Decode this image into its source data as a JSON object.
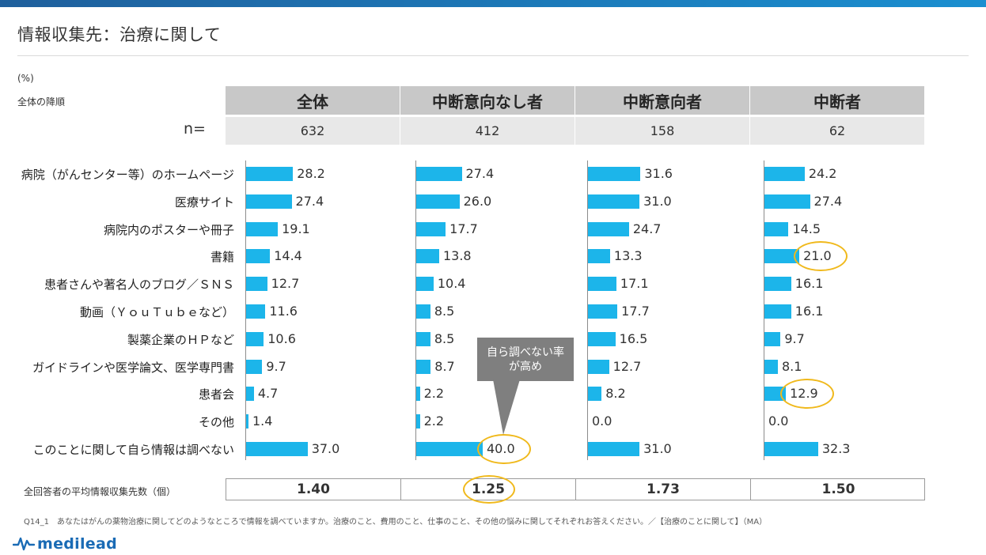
{
  "title": "情報収集先：治療に関して",
  "unit_label": "(%)",
  "sort_note": "全体の降順",
  "n_label": "n=",
  "colors": {
    "bar": "#1cb5ea",
    "highlight": "#f0b91c",
    "header": "#c8c8c8",
    "n_row": "#e8e8e8",
    "callout": "#7f7f7f"
  },
  "chart_data": {
    "type": "bar",
    "orientation": "horizontal",
    "panels": [
      {
        "name": "全体",
        "n": "632",
        "average": "1.40"
      },
      {
        "name": "中断意向なし者",
        "n": "412",
        "average": "1.25"
      },
      {
        "name": "中断意向者",
        "n": "158",
        "average": "1.73"
      },
      {
        "name": "中断者",
        "n": "62",
        "average": "1.50"
      }
    ],
    "categories": [
      "病院（がんセンター等）のホームページ",
      "医療サイト",
      "病院内のポスターや冊子",
      "書籍",
      "患者さんや著名人のブログ／ＳＮＳ",
      "動画（ＹｏｕＴｕｂｅなど）",
      "製薬企業のＨＰなど",
      "ガイドラインや医学論文、医学専門書",
      "患者会",
      "その他",
      "このことに関して自ら情報は調べない"
    ],
    "series": [
      {
        "name": "全体",
        "values": [
          28.2,
          27.4,
          19.1,
          14.4,
          12.7,
          11.6,
          10.6,
          9.7,
          4.7,
          1.4,
          37.0
        ]
      },
      {
        "name": "中断意向なし者",
        "values": [
          27.4,
          26.0,
          17.7,
          13.8,
          10.4,
          8.5,
          8.5,
          8.7,
          2.2,
          2.2,
          40.0
        ]
      },
      {
        "name": "中断意向者",
        "values": [
          31.6,
          31.0,
          24.7,
          13.3,
          17.1,
          17.7,
          16.5,
          12.7,
          8.2,
          0.0,
          31.0
        ]
      },
      {
        "name": "中断者",
        "values": [
          24.2,
          27.4,
          14.5,
          21.0,
          16.1,
          16.1,
          9.7,
          8.1,
          12.9,
          0.0,
          32.3
        ]
      }
    ],
    "highlights": [
      {
        "series": 3,
        "category": 3
      },
      {
        "series": 3,
        "category": 8
      },
      {
        "series": 1,
        "category": 10
      }
    ],
    "highlight_average": 1
  },
  "callout": {
    "line1": "自ら調べない率",
    "line2": "が高め"
  },
  "average_label": "全回答者の平均情報収集先数（個）",
  "footnote": "Q14_1　あなたはがんの薬物治療に関してどのようなところで情報を調べていますか。治療のこと、費用のこと、仕事のこと、その他の悩みに関してそれぞれお答えください。／【治療のことに関して】（MA）",
  "logo_text": "medilead",
  "logo_icon": "pulse-icon"
}
